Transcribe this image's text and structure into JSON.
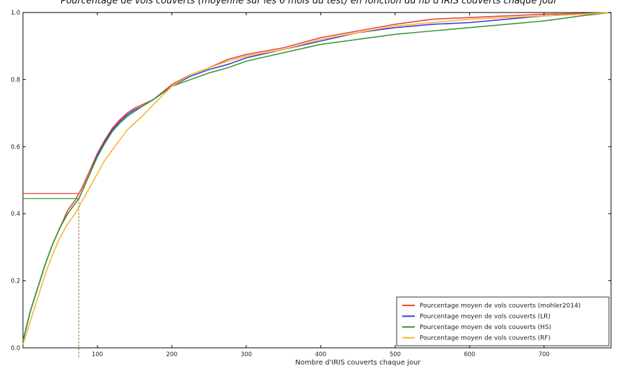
{
  "chart_data": {
    "type": "line",
    "title": "Pourcentage de vols couverts (moyenne sur les 6 mois du test) en fonction du nb d'IRIS couverts chaque jour",
    "xlabel": "Nombre d'IRIS couverts chaque jour",
    "ylabel": "",
    "xlim": [
      0,
      790
    ],
    "ylim": [
      0,
      1.0
    ],
    "xticks": [
      100,
      200,
      300,
      400,
      500,
      600,
      700
    ],
    "yticks": [
      0.0,
      0.2,
      0.4,
      0.6,
      0.8,
      1.0
    ],
    "xtick_labels": [
      "100",
      "200",
      "300",
      "400",
      "500",
      "600",
      "700"
    ],
    "ytick_labels": [
      "0.0",
      "0.2",
      "0.4",
      "0.6",
      "0.8",
      "1.0"
    ],
    "grid": false,
    "legend_position": "bottom-right",
    "series": [
      {
        "name": "Pourcentage moyen de vols couverts (mohler2014)",
        "color": "#e8413a",
        "x": [
          0,
          10,
          20,
          30,
          40,
          50,
          60,
          70,
          75,
          80,
          90,
          100,
          110,
          120,
          130,
          140,
          150,
          160,
          175,
          200,
          225,
          250,
          275,
          300,
          350,
          400,
          450,
          500,
          550,
          600,
          650,
          700,
          750,
          790
        ],
        "y": [
          0.02,
          0.11,
          0.18,
          0.25,
          0.31,
          0.36,
          0.41,
          0.44,
          0.46,
          0.48,
          0.53,
          0.58,
          0.62,
          0.655,
          0.68,
          0.7,
          0.715,
          0.725,
          0.74,
          0.785,
          0.815,
          0.835,
          0.86,
          0.875,
          0.895,
          0.925,
          0.945,
          0.965,
          0.98,
          0.985,
          0.99,
          0.995,
          0.997,
          1.0
        ]
      },
      {
        "name": "Pourcentage moyen de vols couverts (LR)",
        "color": "#3a3adf",
        "x": [
          0,
          10,
          20,
          30,
          40,
          50,
          60,
          70,
          75,
          80,
          90,
          100,
          110,
          120,
          130,
          140,
          150,
          160,
          175,
          200,
          225,
          250,
          275,
          300,
          350,
          400,
          450,
          500,
          550,
          600,
          650,
          700,
          750,
          790
        ],
        "y": [
          0.02,
          0.11,
          0.18,
          0.25,
          0.31,
          0.36,
          0.4,
          0.43,
          0.445,
          0.47,
          0.52,
          0.575,
          0.615,
          0.65,
          0.675,
          0.695,
          0.71,
          0.72,
          0.74,
          0.78,
          0.81,
          0.83,
          0.845,
          0.865,
          0.89,
          0.915,
          0.94,
          0.955,
          0.965,
          0.97,
          0.98,
          0.99,
          0.995,
          1.0
        ]
      },
      {
        "name": "Pourcentage moyen de vols couverts (HS)",
        "color": "#3a9a32",
        "x": [
          0,
          10,
          20,
          30,
          40,
          50,
          60,
          70,
          75,
          80,
          90,
          100,
          110,
          120,
          130,
          140,
          150,
          160,
          175,
          200,
          225,
          250,
          275,
          300,
          350,
          400,
          450,
          500,
          550,
          600,
          650,
          700,
          750,
          790
        ],
        "y": [
          0.02,
          0.11,
          0.18,
          0.25,
          0.31,
          0.36,
          0.4,
          0.43,
          0.445,
          0.47,
          0.52,
          0.57,
          0.61,
          0.645,
          0.67,
          0.69,
          0.705,
          0.72,
          0.74,
          0.78,
          0.8,
          0.82,
          0.835,
          0.855,
          0.88,
          0.905,
          0.92,
          0.935,
          0.945,
          0.955,
          0.965,
          0.975,
          0.99,
          1.0
        ]
      },
      {
        "name": "Pourcentage moyen de vols couverts (RF)",
        "color": "#f2b733",
        "x": [
          0,
          10,
          20,
          30,
          40,
          50,
          60,
          70,
          75,
          80,
          90,
          100,
          110,
          120,
          130,
          140,
          150,
          160,
          175,
          200,
          225,
          250,
          275,
          300,
          350,
          400,
          450,
          500,
          550,
          600,
          650,
          700,
          750,
          790
        ],
        "y": [
          0.01,
          0.08,
          0.15,
          0.22,
          0.28,
          0.33,
          0.37,
          0.4,
          0.42,
          0.44,
          0.48,
          0.52,
          0.56,
          0.59,
          0.62,
          0.65,
          0.67,
          0.69,
          0.725,
          0.78,
          0.815,
          0.835,
          0.855,
          0.87,
          0.89,
          0.92,
          0.94,
          0.96,
          0.97,
          0.98,
          0.985,
          0.99,
          0.995,
          1.0
        ]
      }
    ],
    "annotations": [
      {
        "type": "hline",
        "y": 0.46,
        "x_from": 0,
        "x_to": 75,
        "color": "#e8413a"
      },
      {
        "type": "hline",
        "y": 0.445,
        "x_from": 0,
        "x_to": 75,
        "color": "#3a9a32"
      },
      {
        "type": "vline",
        "x": 75,
        "y_from": 0,
        "y_to": 0.445,
        "style": "dashed",
        "color": "#8a6a2a"
      }
    ]
  }
}
